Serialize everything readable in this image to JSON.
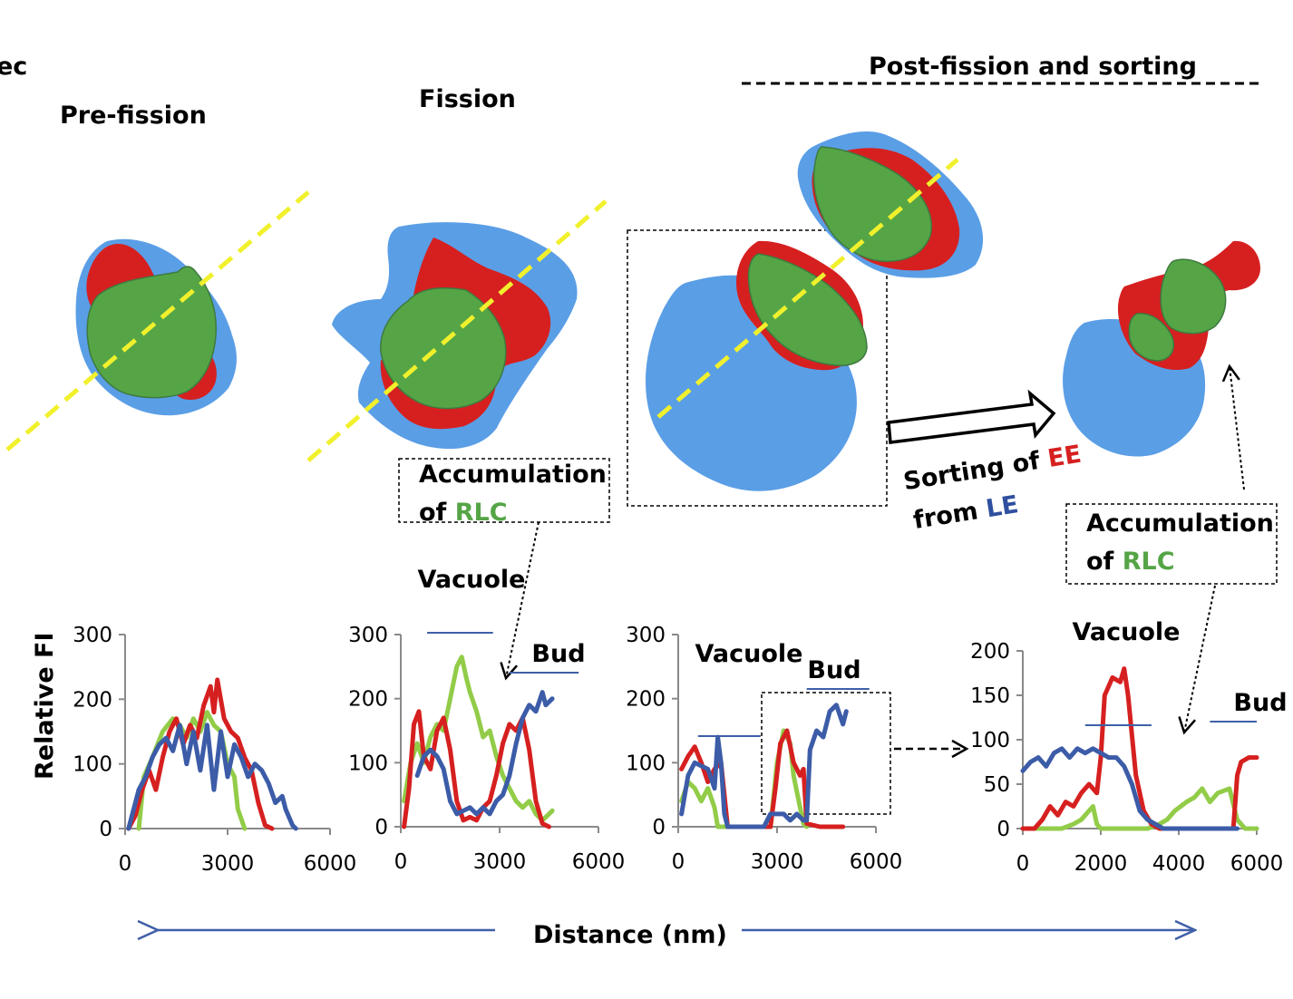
{
  "colors": {
    "blue": "#5a9ee6",
    "red": "#d62020",
    "green": "#55a546",
    "yellow": "#f1f02c",
    "trace_green": "#92cc48",
    "trace_red": "#d62020",
    "trace_blue": "#3c5ca8",
    "arrow_blue": "#3f5fa7",
    "dark_blue_text": "#2f4f9f"
  },
  "header": {
    "cropped_left": "ec",
    "pre_fission": "Pre-fission",
    "fission": "Fission",
    "post_fission": "Post-fission and sorting"
  },
  "annotations": {
    "accumulation_1_line1": "Accumulation",
    "accumulation_1_of": "of ",
    "accumulation_1_rlc": "RLC",
    "sorting_line1_prefix": "Sorting of ",
    "sorting_ee": "EE",
    "sorting_line2_prefix": "from ",
    "sorting_le": "LE",
    "accumulation_2_line1": "Accumulation",
    "accumulation_2_of": "of ",
    "accumulation_2_rlc": "RLC"
  },
  "axis_labels": {
    "y": "Relative FI",
    "x": "Distance (nm)"
  },
  "chart_data": [
    {
      "type": "line",
      "panel": "Pre-fission",
      "ylabel": "Relative FI",
      "xlim": [
        0,
        6000
      ],
      "ylim": [
        0,
        300
      ],
      "xticks": [
        "0",
        "3000",
        "6000"
      ],
      "yticks": [
        "0",
        "100",
        "200",
        "300"
      ],
      "labels": [],
      "series": [
        {
          "color": "green",
          "x": [
            400,
            550,
            800,
            1100,
            1400,
            1600,
            1800,
            2000,
            2200,
            2400,
            2600,
            2800,
            3000,
            3200,
            3300,
            3500
          ],
          "y": [
            0,
            80,
            110,
            150,
            170,
            160,
            140,
            170,
            150,
            180,
            160,
            150,
            100,
            80,
            30,
            0
          ]
        },
        {
          "color": "red",
          "x": [
            100,
            300,
            500,
            700,
            900,
            1100,
            1300,
            1500,
            1700,
            1900,
            2100,
            2300,
            2500,
            2600,
            2700,
            2900,
            3100,
            3300,
            3500,
            3700,
            3900,
            4100,
            4300
          ],
          "y": [
            0,
            20,
            60,
            90,
            60,
            110,
            150,
            170,
            130,
            160,
            140,
            190,
            220,
            180,
            230,
            170,
            150,
            140,
            110,
            90,
            40,
            5,
            0
          ]
        },
        {
          "color": "blue",
          "x": [
            100,
            300,
            400,
            600,
            800,
            1000,
            1200,
            1400,
            1600,
            1800,
            2000,
            2200,
            2400,
            2600,
            2800,
            3000,
            3200,
            3400,
            3600,
            3800,
            4000,
            4200,
            4400,
            4600,
            4700,
            4900,
            5000
          ],
          "y": [
            0,
            40,
            60,
            80,
            110,
            130,
            140,
            120,
            160,
            100,
            150,
            90,
            160,
            60,
            150,
            80,
            130,
            110,
            80,
            100,
            90,
            70,
            40,
            50,
            30,
            5,
            0
          ]
        }
      ]
    },
    {
      "type": "line",
      "panel": "Fission",
      "xlim": [
        0,
        6000
      ],
      "ylim": [
        0,
        300
      ],
      "xticks": [
        "0",
        "3000",
        "6000"
      ],
      "yticks": [
        "0",
        "100",
        "200",
        "300"
      ],
      "labels": [
        {
          "text": "Vacuole",
          "bar": [
            800,
            2800
          ]
        },
        {
          "text": "Bud",
          "bar": [
            3300,
            5400
          ]
        }
      ],
      "series": [
        {
          "color": "green",
          "x": [
            100,
            300,
            500,
            700,
            900,
            1100,
            1300,
            1500,
            1700,
            1850,
            2000,
            2100,
            2300,
            2500,
            2700,
            2900,
            3100,
            3300,
            3500,
            3700,
            3900,
            4100,
            4300,
            4500,
            4600
          ],
          "y": [
            40,
            100,
            130,
            100,
            140,
            160,
            150,
            200,
            250,
            265,
            230,
            210,
            180,
            140,
            150,
            110,
            80,
            60,
            40,
            30,
            40,
            20,
            10,
            20,
            25
          ]
        },
        {
          "color": "red",
          "x": [
            100,
            250,
            400,
            550,
            700,
            900,
            1100,
            1300,
            1500,
            1700,
            1900,
            2100,
            2300,
            2500,
            2700,
            2900,
            3100,
            3300,
            3500,
            3700,
            3900,
            4100,
            4300,
            4500
          ],
          "y": [
            0,
            60,
            160,
            180,
            110,
            90,
            150,
            170,
            120,
            40,
            10,
            15,
            10,
            30,
            40,
            80,
            130,
            160,
            150,
            170,
            120,
            40,
            5,
            0
          ]
        },
        {
          "color": "blue",
          "x": [
            500,
            700,
            900,
            1100,
            1300,
            1500,
            1700,
            1900,
            2100,
            2300,
            2500,
            2700,
            2900,
            3100,
            3300,
            3500,
            3700,
            3900,
            4100,
            4300,
            4400,
            4600
          ],
          "y": [
            80,
            110,
            120,
            110,
            90,
            40,
            20,
            25,
            30,
            20,
            30,
            20,
            40,
            50,
            80,
            130,
            170,
            190,
            180,
            210,
            190,
            200
          ]
        }
      ]
    },
    {
      "type": "line",
      "panel": "Post-fission and sorting (boxed)",
      "xlim": [
        0,
        6000
      ],
      "ylim": [
        0,
        300
      ],
      "xticks": [
        "0",
        "3000",
        "6000"
      ],
      "yticks": [
        "0",
        "100",
        "200",
        "300"
      ],
      "labels": [
        {
          "text": "Vacuole",
          "bar": [
            600,
            2500
          ]
        },
        {
          "text": "Bud",
          "bar": [
            3900,
            5800
          ]
        }
      ],
      "series": [
        {
          "color": "green",
          "x": [
            100,
            300,
            500,
            700,
            900,
            1100,
            1200,
            1400,
            2800,
            3000,
            3200,
            3400,
            3500,
            3700,
            3800,
            3900
          ],
          "y": [
            40,
            70,
            60,
            40,
            60,
            30,
            0,
            0,
            0,
            100,
            150,
            130,
            80,
            30,
            5,
            0
          ]
        },
        {
          "color": "red",
          "x": [
            100,
            300,
            500,
            700,
            900,
            1100,
            1300,
            1500,
            2800,
            2950,
            3100,
            3300,
            3500,
            3700,
            3800,
            3900,
            4300,
            5000
          ],
          "y": [
            90,
            110,
            125,
            100,
            70,
            90,
            100,
            0,
            0,
            60,
            130,
            150,
            100,
            80,
            90,
            5,
            0,
            0
          ]
        },
        {
          "color": "blue",
          "x": [
            100,
            300,
            500,
            700,
            900,
            1100,
            1200,
            1300,
            1400,
            1500,
            2000,
            2600,
            2800,
            3000,
            3200,
            3400,
            3600,
            3800,
            3900,
            4000,
            4200,
            4400,
            4600,
            4800,
            5000,
            5100
          ],
          "y": [
            20,
            80,
            100,
            95,
            90,
            60,
            140,
            100,
            20,
            0,
            0,
            0,
            20,
            20,
            20,
            10,
            20,
            10,
            10,
            120,
            150,
            140,
            180,
            190,
            160,
            180
          ]
        }
      ]
    },
    {
      "type": "line",
      "panel": "Post-fission and sorting (expanded)",
      "xlim": [
        0,
        6000
      ],
      "ylim": [
        0,
        200
      ],
      "xticks": [
        "0",
        "2000",
        "4000",
        "6000"
      ],
      "yticks": [
        "0",
        "50",
        "100",
        "150",
        "200"
      ],
      "labels": [
        {
          "text": "Vacuole",
          "bar": [
            1600,
            3300
          ]
        },
        {
          "text": "Bud",
          "bar": [
            4800,
            6000
          ]
        }
      ],
      "series": [
        {
          "color": "green",
          "x": [
            0,
            1000,
            1300,
            1500,
            1700,
            1800,
            1900,
            2000,
            2200,
            3200,
            3500,
            3700,
            3900,
            4200,
            4400,
            4600,
            4800,
            5000,
            5300,
            5500,
            5700,
            6000
          ],
          "y": [
            0,
            0,
            5,
            10,
            20,
            25,
            5,
            0,
            0,
            0,
            5,
            10,
            20,
            30,
            35,
            45,
            30,
            40,
            45,
            10,
            0,
            0
          ]
        },
        {
          "color": "red",
          "x": [
            0,
            300,
            500,
            700,
            900,
            1100,
            1300,
            1500,
            1700,
            1900,
            2000,
            2100,
            2200,
            2300,
            2500,
            2600,
            2700,
            2900,
            3100,
            3300,
            3500,
            4000,
            5400,
            5500,
            5600,
            5800,
            6000
          ],
          "y": [
            0,
            0,
            10,
            25,
            15,
            30,
            25,
            40,
            50,
            40,
            80,
            150,
            160,
            170,
            165,
            180,
            150,
            60,
            20,
            5,
            0,
            0,
            0,
            60,
            75,
            80,
            80
          ]
        },
        {
          "color": "blue",
          "x": [
            0,
            200,
            400,
            600,
            800,
            1000,
            1200,
            1400,
            1600,
            1800,
            2000,
            2200,
            2400,
            2600,
            2800,
            3000,
            3200,
            3400,
            3600,
            4000,
            5000,
            5400,
            5500
          ],
          "y": [
            65,
            75,
            80,
            70,
            85,
            90,
            80,
            90,
            85,
            90,
            85,
            80,
            80,
            70,
            50,
            20,
            10,
            5,
            0,
            0,
            0,
            0,
            0
          ]
        }
      ]
    }
  ]
}
